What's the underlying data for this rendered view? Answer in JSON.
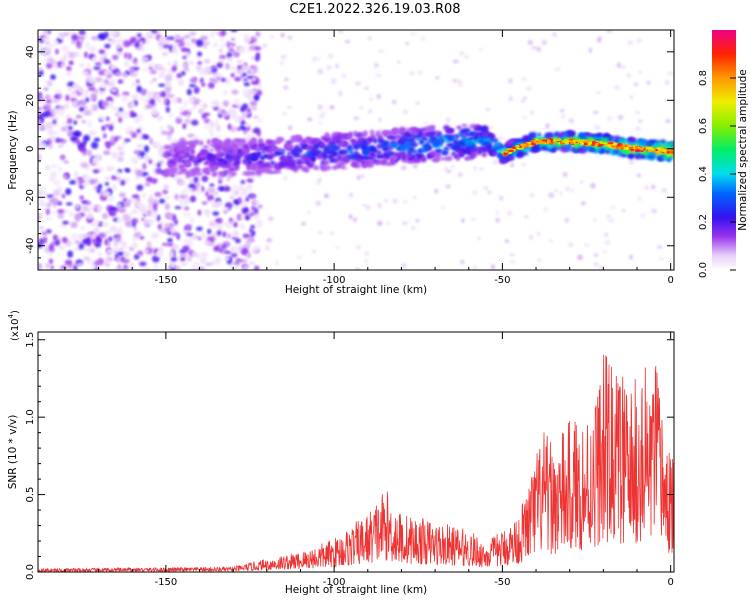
{
  "title": "C2E1.2022.326.19.03.R08",
  "colors": {
    "snr_line": "#ee3333",
    "axis": "#000000"
  },
  "chart_data": [
    {
      "type": "heatmap",
      "xlabel": "Height of straight line (km)",
      "ylabel": "Frequency (Hz)",
      "xlim": [
        -188,
        1
      ],
      "ylim": [
        -50,
        49
      ],
      "xticks": [
        -150,
        -100,
        -50,
        0
      ],
      "yticks": [
        -40,
        -20,
        0,
        20,
        40
      ],
      "colorbar": {
        "label": "Normalized spectral amplitude",
        "range": [
          0,
          1
        ],
        "ticks": [
          0.0,
          0.2,
          0.4,
          0.6,
          0.8
        ]
      },
      "features": [
        {
          "name": "ridge",
          "points": [
            [
              -145,
              -4
            ],
            [
              -120,
              -3
            ],
            [
              -100,
              -1
            ],
            [
              -80,
              1
            ],
            [
              -60,
              3
            ],
            [
              -55,
              4
            ],
            [
              -50,
              -2
            ],
            [
              -40,
              3
            ],
            [
              -30,
              3
            ],
            [
              -20,
              2
            ],
            [
              -10,
              0
            ],
            [
              0,
              -1
            ]
          ]
        }
      ]
    },
    {
      "type": "line",
      "xlabel": "Height of straight line (km)",
      "ylabel": "SNR (10 * v/v)",
      "multiplier": "(x10",
      "multiplier_exp": "4",
      "multiplier_close": ")",
      "xlim": [
        -188,
        1
      ],
      "ylim": [
        0,
        1.55
      ],
      "xticks": [
        -150,
        -100,
        -50,
        0
      ],
      "yticks": [
        0.0,
        0.5,
        1.0,
        1.5
      ],
      "envelope": [
        [
          -188,
          0.02
        ],
        [
          -130,
          0.03
        ],
        [
          -120,
          0.08
        ],
        [
          -110,
          0.12
        ],
        [
          -100,
          0.2
        ],
        [
          -90,
          0.35
        ],
        [
          -85,
          0.5
        ],
        [
          -80,
          0.35
        ],
        [
          -70,
          0.3
        ],
        [
          -60,
          0.25
        ],
        [
          -55,
          0.18
        ],
        [
          -50,
          0.25
        ],
        [
          -45,
          0.35
        ],
        [
          -42,
          0.55
        ],
        [
          -38,
          0.85
        ],
        [
          -35,
          0.75
        ],
        [
          -30,
          0.9
        ],
        [
          -25,
          0.95
        ],
        [
          -22,
          1.1
        ],
        [
          -20,
          1.3
        ],
        [
          -18,
          1.25
        ],
        [
          -15,
          1.2
        ],
        [
          -12,
          1.1
        ],
        [
          -8,
          1.2
        ],
        [
          -5,
          1.3
        ],
        [
          -3,
          1.1
        ],
        [
          -1,
          0.8
        ],
        [
          1,
          0.65
        ]
      ]
    }
  ]
}
